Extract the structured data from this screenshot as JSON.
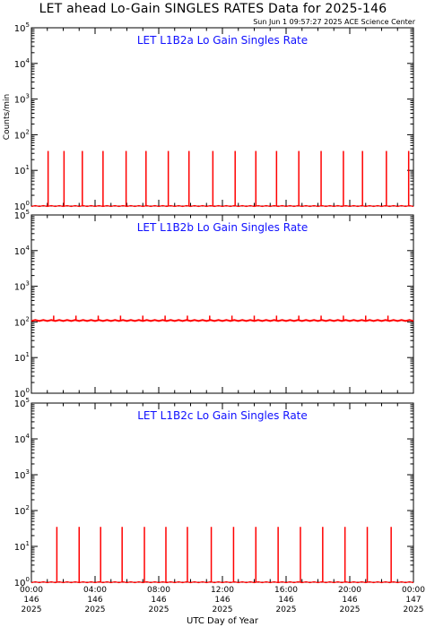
{
  "page": {
    "title": "LET ahead Lo-Gain SINGLES RATES Data for 2025-146",
    "timestamp": "Sun Jun  1 09:57:27 2025 ACE Science Center"
  },
  "chart_data": [
    {
      "type": "scatter",
      "title": "LET L1B2a Lo Gain Singles Rate",
      "ylabel": "Counts/min",
      "yscale": "log",
      "ylim": [
        1,
        100000
      ],
      "xlim": [
        0,
        24
      ],
      "y_tick_exponents": [
        0,
        1,
        2,
        3,
        4,
        5
      ],
      "color": "#ff0000",
      "series": [
        {
          "baseline": 1,
          "spikes": [
            {
              "x": 1.05,
              "y": 35
            },
            {
              "x": 2.05,
              "y": 35
            },
            {
              "x": 3.2,
              "y": 35
            },
            {
              "x": 4.5,
              "y": 35
            },
            {
              "x": 5.95,
              "y": 35
            },
            {
              "x": 7.2,
              "y": 35
            },
            {
              "x": 8.6,
              "y": 35
            },
            {
              "x": 9.9,
              "y": 35
            },
            {
              "x": 11.4,
              "y": 35
            },
            {
              "x": 12.8,
              "y": 35
            },
            {
              "x": 14.1,
              "y": 35
            },
            {
              "x": 15.4,
              "y": 35
            },
            {
              "x": 16.8,
              "y": 35
            },
            {
              "x": 18.2,
              "y": 35
            },
            {
              "x": 19.6,
              "y": 35
            },
            {
              "x": 20.8,
              "y": 35
            },
            {
              "x": 22.3,
              "y": 35
            },
            {
              "x": 23.7,
              "y": 35
            }
          ]
        }
      ]
    },
    {
      "type": "scatter",
      "title": "LET L1B2b Lo Gain Singles Rate",
      "ylabel": "",
      "yscale": "log",
      "ylim": [
        1,
        100000
      ],
      "xlim": [
        0,
        24
      ],
      "y_tick_exponents": [
        0,
        1,
        2,
        3,
        4,
        5
      ],
      "color": "#ff0000",
      "series": [
        {
          "baseline": 110,
          "spikes": [
            {
              "x": 1.4,
              "y": 150
            },
            {
              "x": 2.8,
              "y": 150
            },
            {
              "x": 4.2,
              "y": 150
            },
            {
              "x": 5.6,
              "y": 150
            },
            {
              "x": 7.0,
              "y": 150
            },
            {
              "x": 8.4,
              "y": 150
            },
            {
              "x": 9.8,
              "y": 150
            },
            {
              "x": 11.2,
              "y": 150
            },
            {
              "x": 12.6,
              "y": 150
            },
            {
              "x": 14.0,
              "y": 150
            },
            {
              "x": 15.4,
              "y": 150
            },
            {
              "x": 16.8,
              "y": 150
            },
            {
              "x": 18.2,
              "y": 150
            },
            {
              "x": 19.6,
              "y": 150
            },
            {
              "x": 21.0,
              "y": 150
            },
            {
              "x": 22.4,
              "y": 150
            }
          ]
        }
      ]
    },
    {
      "type": "scatter",
      "title": "LET L1B2c Lo Gain Singles Rate",
      "ylabel": "",
      "yscale": "log",
      "ylim": [
        1,
        100000
      ],
      "xlim": [
        0,
        24
      ],
      "y_tick_exponents": [
        0,
        1,
        2,
        3,
        4,
        5
      ],
      "color": "#ff0000",
      "series": [
        {
          "baseline": 1,
          "spikes": [
            {
              "x": 1.6,
              "y": 35
            },
            {
              "x": 3.0,
              "y": 35
            },
            {
              "x": 4.35,
              "y": 35
            },
            {
              "x": 5.7,
              "y": 35
            },
            {
              "x": 7.1,
              "y": 35
            },
            {
              "x": 8.45,
              "y": 35
            },
            {
              "x": 9.8,
              "y": 35
            },
            {
              "x": 11.3,
              "y": 35
            },
            {
              "x": 12.7,
              "y": 35
            },
            {
              "x": 14.1,
              "y": 35
            },
            {
              "x": 15.5,
              "y": 35
            },
            {
              "x": 16.9,
              "y": 35
            },
            {
              "x": 18.3,
              "y": 35
            },
            {
              "x": 19.7,
              "y": 35
            },
            {
              "x": 21.1,
              "y": 35
            },
            {
              "x": 22.6,
              "y": 35
            }
          ]
        }
      ]
    }
  ],
  "x_axis": {
    "label": "UTC Day of Year",
    "ticks": [
      {
        "x": 0,
        "time": "00:00",
        "doy": "146",
        "year": "2025"
      },
      {
        "x": 4,
        "time": "04:00",
        "doy": "146",
        "year": "2025"
      },
      {
        "x": 8,
        "time": "08:00",
        "doy": "146",
        "year": "2025"
      },
      {
        "x": 12,
        "time": "12:00",
        "doy": "146",
        "year": "2025"
      },
      {
        "x": 16,
        "time": "16:00",
        "doy": "146",
        "year": "2025"
      },
      {
        "x": 20,
        "time": "20:00",
        "doy": "146",
        "year": "2025"
      },
      {
        "x": 24,
        "time": "00:00",
        "doy": "147",
        "year": "2025"
      }
    ]
  }
}
